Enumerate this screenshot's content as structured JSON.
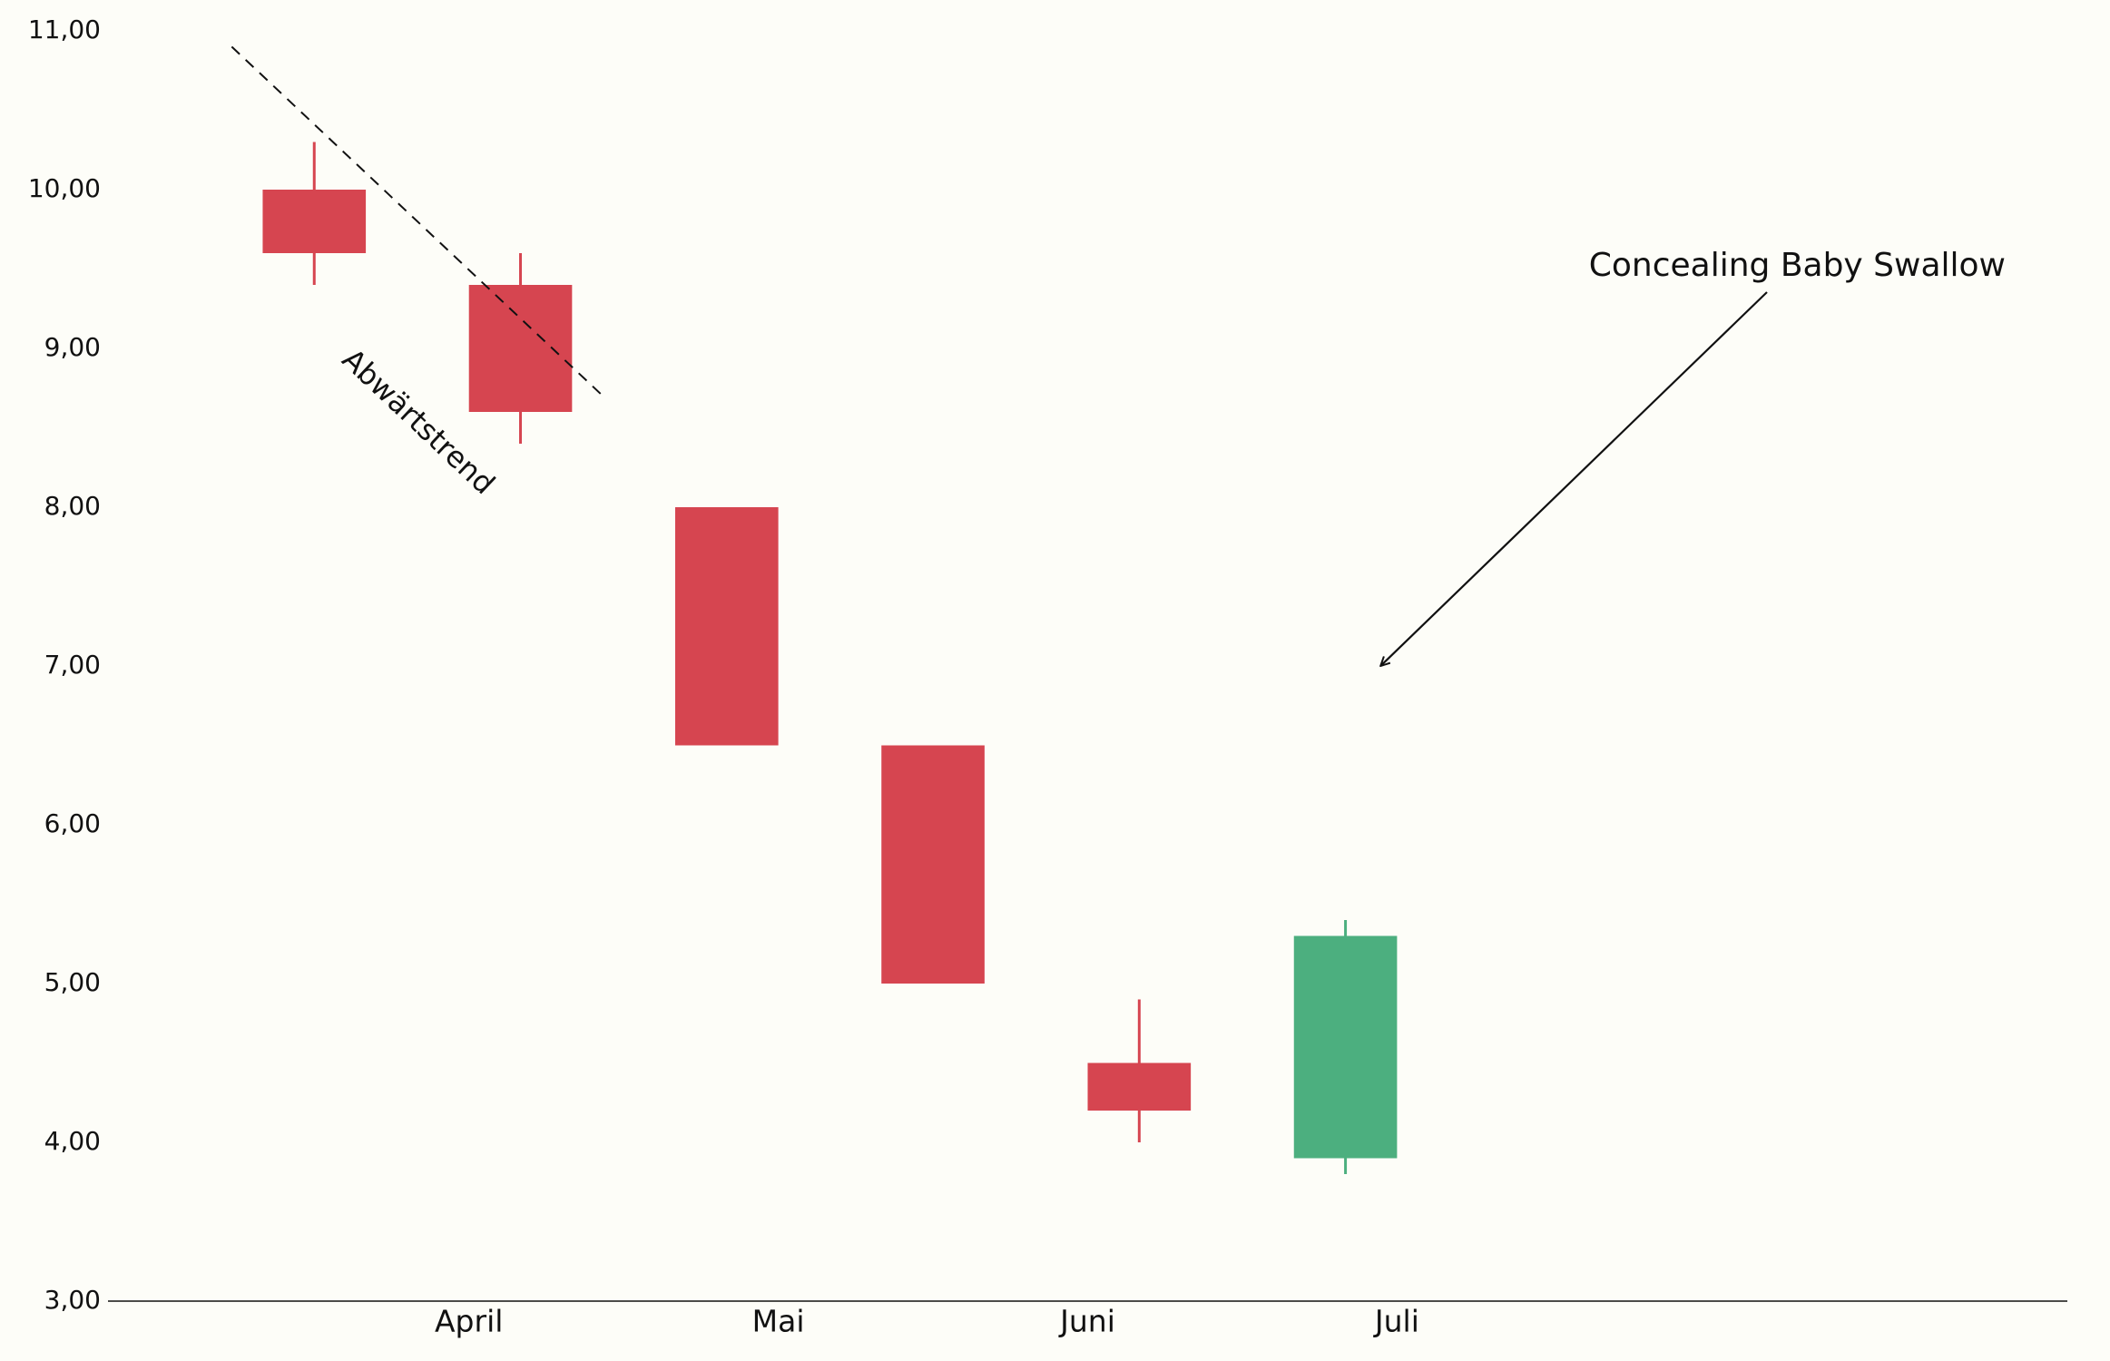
{
  "chart_data": {
    "type": "candlestick",
    "x": [
      0,
      1,
      2,
      3,
      4,
      5
    ],
    "open": [
      10,
      9.4,
      8,
      6.5,
      4.5,
      3.9
    ],
    "high": [
      10.3,
      9.6,
      8,
      6.5,
      4.9,
      5.4
    ],
    "low": [
      9.4,
      8.4,
      6.5,
      5,
      4,
      3.8
    ],
    "close": [
      9.6,
      8.6,
      6.5,
      5,
      4.2,
      5.3
    ],
    "up_color": "#4caf7f",
    "down_color": "#d64550",
    "xlim": [
      -1,
      8.5
    ],
    "xticks": [
      {
        "value": 0.75,
        "label": "April"
      },
      {
        "value": 2.25,
        "label": "Mai"
      },
      {
        "value": 3.75,
        "label": "Juni"
      },
      {
        "value": 5.25,
        "label": "Juli"
      }
    ],
    "ylim": [
      3,
      11
    ],
    "yticks": [
      {
        "value": 3,
        "label": "3,00"
      },
      {
        "value": 4,
        "label": "4,00"
      },
      {
        "value": 5,
        "label": "5,00"
      },
      {
        "value": 6,
        "label": "6,00"
      },
      {
        "value": 7,
        "label": "7,00"
      },
      {
        "value": 8,
        "label": "8,00"
      },
      {
        "value": 9,
        "label": "9,00"
      },
      {
        "value": 10,
        "label": "10,00"
      },
      {
        "value": 11,
        "label": "11,00"
      }
    ],
    "trendline": {
      "x": [
        -0.4,
        1.4
      ],
      "y": [
        10.9,
        8.7
      ],
      "label": "Abwärtstrend"
    },
    "annotation": {
      "text": "Concealing Baby Swallow",
      "xy": [
        5.17,
        7.0
      ]
    }
  }
}
